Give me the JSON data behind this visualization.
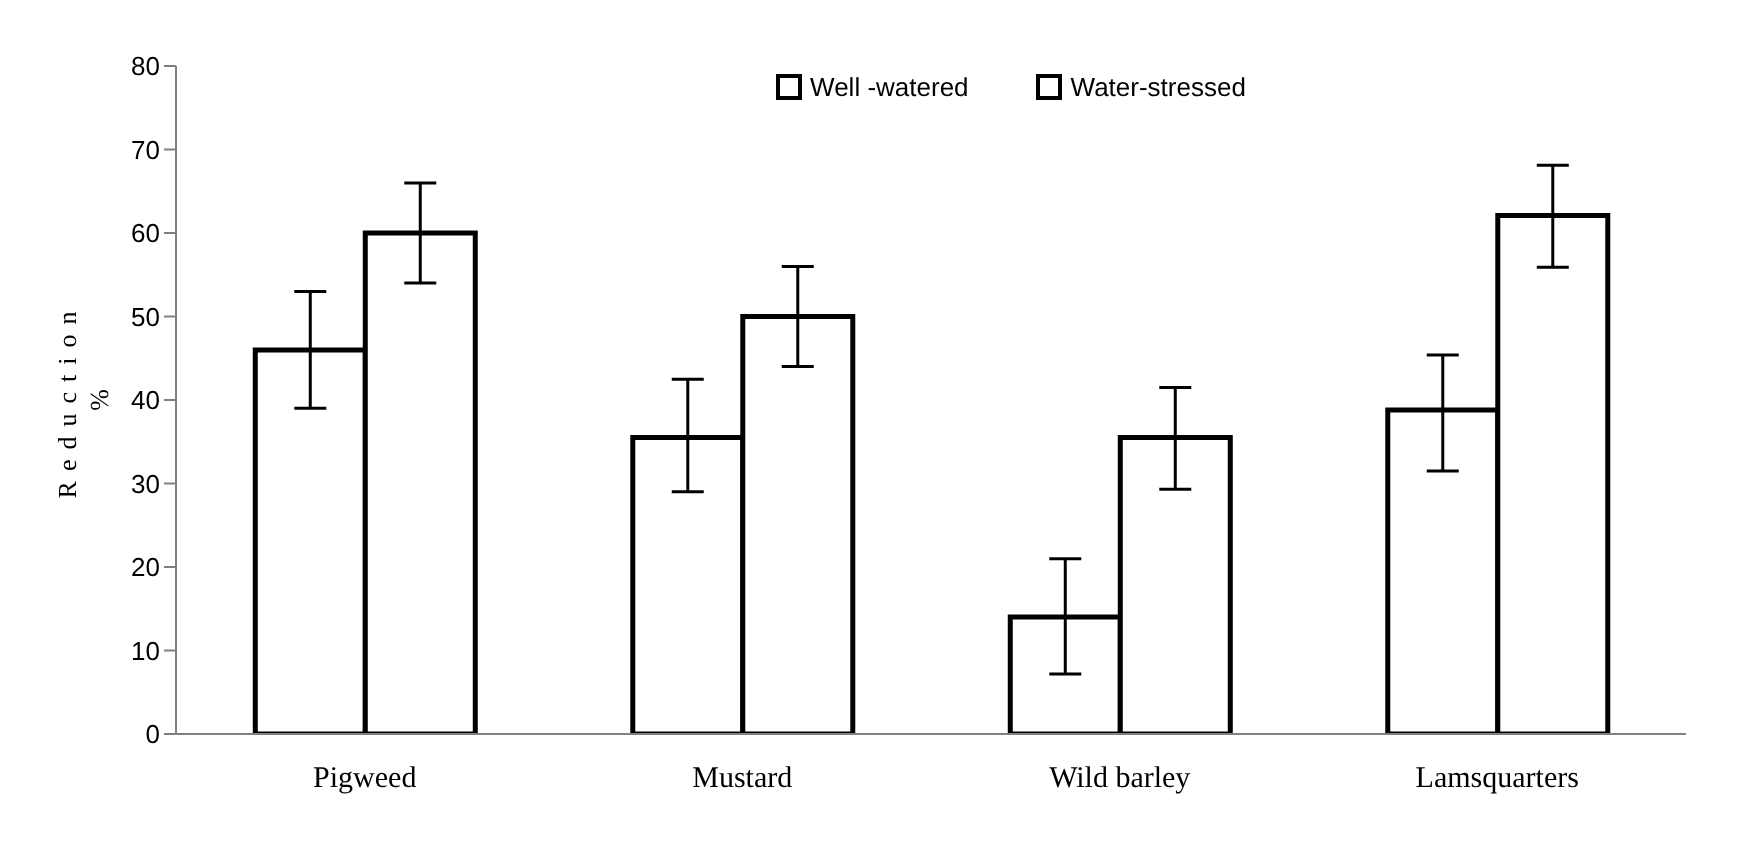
{
  "chart_data": {
    "type": "bar",
    "ylabel": "Reduction\n%",
    "categories": [
      "Pigweed",
      "Mustard",
      "Wild barley",
      "Lamsquarters"
    ],
    "series": [
      {
        "name": "Well -watered",
        "color": "#ffffff",
        "values": [
          46,
          35.5,
          14,
          38.8
        ],
        "errors": [
          [
            39,
            53
          ],
          [
            29,
            42.5
          ],
          [
            7.2,
            21
          ],
          [
            31.5,
            45.4
          ]
        ]
      },
      {
        "name": "Water-stressed",
        "color": "#ffffff",
        "values": [
          60,
          50,
          35.5,
          62.1
        ],
        "errors": [
          [
            54,
            66
          ],
          [
            44,
            56
          ],
          [
            29.3,
            41.5
          ],
          [
            55.9,
            68.1
          ]
        ]
      }
    ],
    "ylim": [
      0,
      80
    ],
    "yticks": [
      0,
      10,
      20,
      30,
      40,
      50,
      60,
      70,
      80
    ],
    "grid": false,
    "legend": "top"
  }
}
